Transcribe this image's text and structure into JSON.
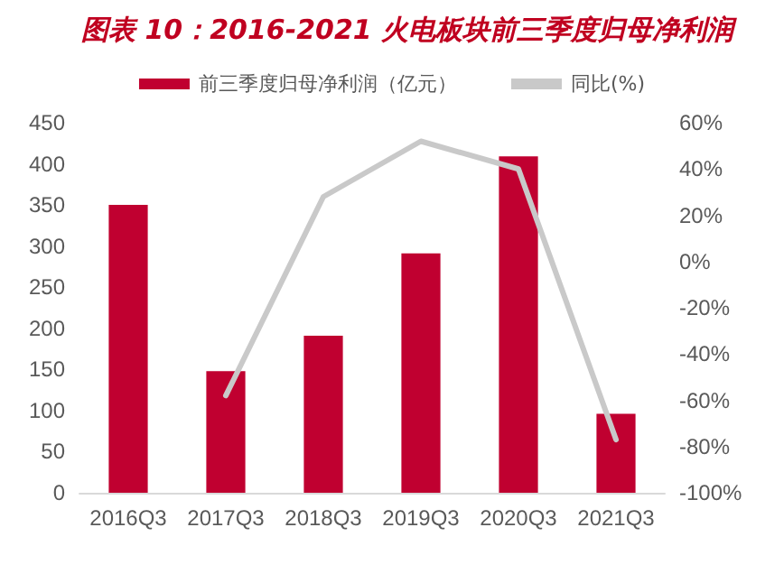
{
  "chart_data": {
    "type": "bar",
    "title": "图表 10：2016-2021 火电板块前三季度归母净利润",
    "categories": [
      "2016Q3",
      "2017Q3",
      "2018Q3",
      "2019Q3",
      "2020Q3",
      "2021Q3"
    ],
    "series": [
      {
        "name": "前三季度归母净利润（亿元）",
        "color": "#c00030",
        "values": [
          350,
          148,
          191,
          291,
          409,
          96
        ]
      },
      {
        "name": "同比(%)",
        "type": "line",
        "axis": "y2",
        "color": "#c9c9c9",
        "values": [
          null,
          -58,
          28,
          52,
          40,
          -77
        ]
      }
    ],
    "ylim": [
      0,
      450
    ],
    "yticks": [
      0,
      50,
      100,
      150,
      200,
      250,
      300,
      350,
      400,
      450
    ],
    "y2lim": [
      -100,
      60
    ],
    "y2ticks": [
      {
        "value": -100,
        "label": "-100%"
      },
      {
        "value": -80,
        "label": "-80%"
      },
      {
        "value": -60,
        "label": "-60%"
      },
      {
        "value": -40,
        "label": "-40%"
      },
      {
        "value": -20,
        "label": "-20%"
      },
      {
        "value": 0,
        "label": "0%"
      },
      {
        "value": 20,
        "label": "20%"
      },
      {
        "value": 40,
        "label": "40%"
      },
      {
        "value": 60,
        "label": "60%"
      }
    ],
    "legend": "top",
    "grid": false,
    "marker": "none",
    "line_style": "solid"
  }
}
